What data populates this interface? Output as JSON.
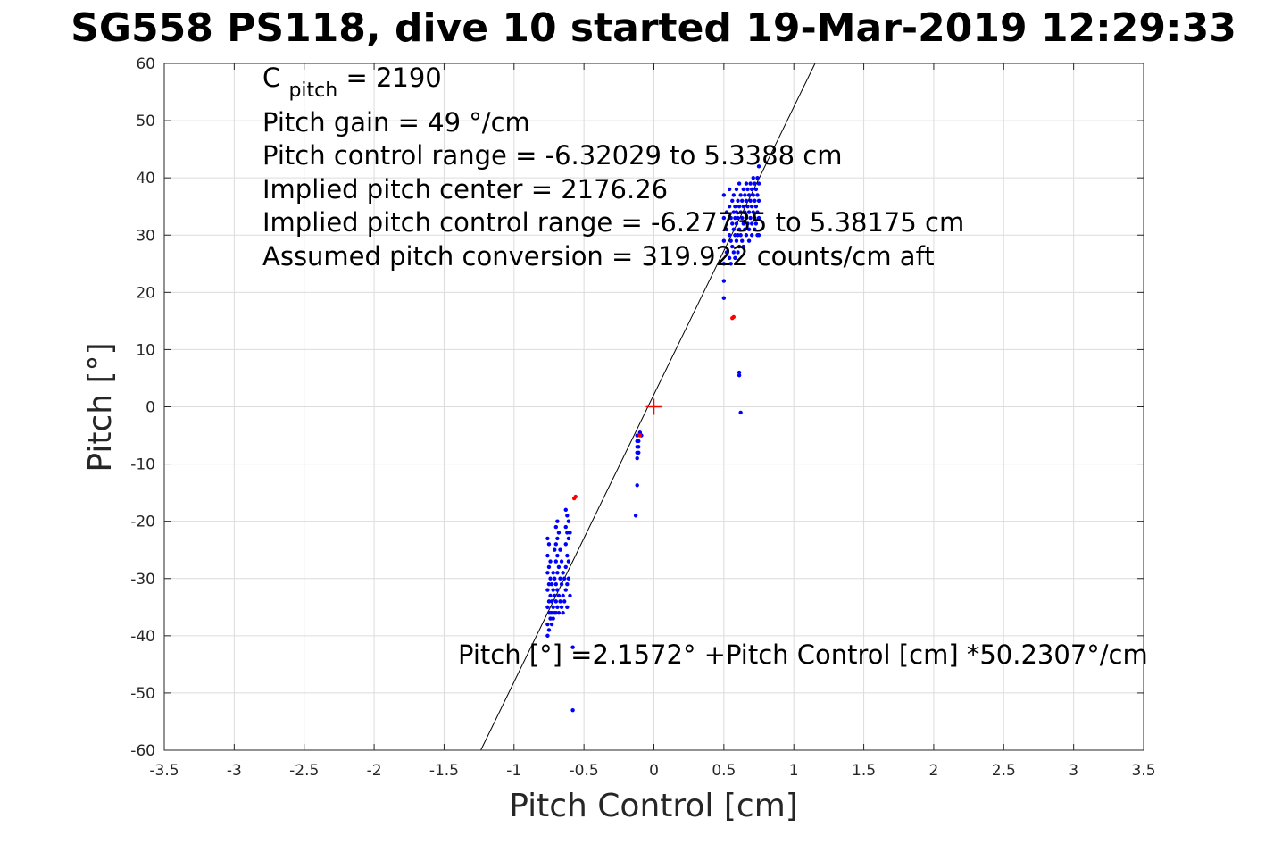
{
  "chart_data": {
    "type": "scatter",
    "title": "SG558 PS118, dive 10 started 19-Mar-2019 12:29:33",
    "xlabel": "Pitch Control [cm]",
    "ylabel": "Pitch [°]",
    "xlim": [
      -3.5,
      3.5
    ],
    "ylim": [
      -60,
      60
    ],
    "grid": true,
    "x_ticks": [
      "-3.5",
      "-3",
      "-2.5",
      "-2",
      "-1.5",
      "-1",
      "-0.5",
      "0",
      "0.5",
      "1",
      "1.5",
      "2",
      "2.5",
      "3",
      "3.5"
    ],
    "y_ticks": [
      "-60",
      "-50",
      "-40",
      "-30",
      "-20",
      "-10",
      "0",
      "10",
      "20",
      "30",
      "40",
      "50",
      "60"
    ],
    "annotations": {
      "c_pitch_main": "C",
      "c_pitch_sub": "pitch",
      "c_pitch_value": " = 2190",
      "pitch_gain": "Pitch gain = 49 °/cm",
      "control_range": "Pitch control range = -6.32029 to 5.3388 cm",
      "implied_center": "Implied pitch center = 2176.26",
      "implied_range": "Implied pitch control range = -6.27735 to 5.38175 cm",
      "conversion": "Assumed pitch conversion = 319.922 counts/cm aft",
      "fit_equation": "Pitch [°] =2.1572° +Pitch Control [cm] *50.2307°/cm"
    },
    "fit_line": {
      "intercept": 2.1572,
      "slope": 50.2307,
      "color": "#000000"
    },
    "center_marker": {
      "x": 0,
      "y": 0,
      "color": "#ff0000"
    },
    "series": [
      {
        "color": "#0000ff",
        "points": [
          [
            -0.76,
            -23
          ],
          [
            -0.76,
            -26
          ],
          [
            -0.76,
            -29
          ],
          [
            -0.76,
            -32
          ],
          [
            -0.76,
            -35
          ],
          [
            -0.76,
            -38
          ],
          [
            -0.76,
            -40
          ],
          [
            -0.75,
            -24
          ],
          [
            -0.75,
            -28
          ],
          [
            -0.75,
            -31
          ],
          [
            -0.75,
            -34
          ],
          [
            -0.75,
            -36
          ],
          [
            -0.75,
            -39
          ],
          [
            -0.74,
            -27
          ],
          [
            -0.74,
            -30
          ],
          [
            -0.74,
            -33
          ],
          [
            -0.74,
            -36
          ],
          [
            -0.74,
            -37
          ],
          [
            -0.73,
            -31
          ],
          [
            -0.73,
            -34
          ],
          [
            -0.73,
            -36
          ],
          [
            -0.73,
            -38
          ],
          [
            -0.72,
            -29
          ],
          [
            -0.72,
            -32
          ],
          [
            -0.72,
            -35
          ],
          [
            -0.72,
            -37
          ],
          [
            -0.71,
            -25
          ],
          [
            -0.71,
            -30
          ],
          [
            -0.71,
            -33
          ],
          [
            -0.71,
            -36
          ],
          [
            -0.7,
            -21
          ],
          [
            -0.7,
            -24
          ],
          [
            -0.7,
            -27
          ],
          [
            -0.7,
            -31
          ],
          [
            -0.7,
            -34
          ],
          [
            -0.7,
            -36
          ],
          [
            -0.69,
            -20
          ],
          [
            -0.69,
            -23
          ],
          [
            -0.69,
            -26
          ],
          [
            -0.69,
            -29
          ],
          [
            -0.69,
            -32
          ],
          [
            -0.69,
            -35
          ],
          [
            -0.68,
            -22
          ],
          [
            -0.68,
            -28
          ],
          [
            -0.68,
            -33
          ],
          [
            -0.68,
            -36
          ],
          [
            -0.67,
            -25
          ],
          [
            -0.67,
            -30
          ],
          [
            -0.67,
            -34
          ],
          [
            -0.66,
            -27
          ],
          [
            -0.66,
            -31
          ],
          [
            -0.66,
            -35
          ],
          [
            -0.65,
            -29
          ],
          [
            -0.65,
            -33
          ],
          [
            -0.65,
            -36
          ],
          [
            -0.64,
            -30
          ],
          [
            -0.64,
            -34
          ],
          [
            -0.63,
            -18
          ],
          [
            -0.63,
            -21
          ],
          [
            -0.63,
            -24
          ],
          [
            -0.63,
            -28
          ],
          [
            -0.63,
            -32
          ],
          [
            -0.62,
            -19
          ],
          [
            -0.62,
            -22
          ],
          [
            -0.62,
            -26
          ],
          [
            -0.62,
            -31
          ],
          [
            -0.62,
            -35
          ],
          [
            -0.61,
            -20
          ],
          [
            -0.61,
            -23
          ],
          [
            -0.61,
            -27
          ],
          [
            -0.61,
            -30
          ],
          [
            -0.6,
            -22
          ],
          [
            -0.6,
            -33
          ],
          [
            -0.58,
            -42
          ],
          [
            -0.58,
            -53
          ],
          [
            -0.12,
            -5
          ],
          [
            -0.12,
            -6
          ],
          [
            -0.12,
            -7
          ],
          [
            -0.12,
            -8
          ],
          [
            -0.12,
            -9
          ],
          [
            -0.11,
            -6
          ],
          [
            -0.11,
            -7
          ],
          [
            -0.11,
            -8
          ],
          [
            -0.12,
            -13.7
          ],
          [
            -0.13,
            -19
          ],
          [
            -0.1,
            -4.5
          ],
          [
            -0.09,
            -5
          ],
          [
            0.5,
            37
          ],
          [
            0.5,
            33
          ],
          [
            0.5,
            29
          ],
          [
            0.5,
            25
          ],
          [
            0.5,
            22
          ],
          [
            0.5,
            19
          ],
          [
            0.52,
            34
          ],
          [
            0.52,
            31
          ],
          [
            0.52,
            27
          ],
          [
            0.54,
            38
          ],
          [
            0.54,
            35
          ],
          [
            0.54,
            30
          ],
          [
            0.54,
            26
          ],
          [
            0.55,
            33
          ],
          [
            0.55,
            29
          ],
          [
            0.55,
            25
          ],
          [
            0.56,
            36
          ],
          [
            0.56,
            32
          ],
          [
            0.56,
            28
          ],
          [
            0.57,
            37
          ],
          [
            0.57,
            34
          ],
          [
            0.57,
            31
          ],
          [
            0.57,
            27
          ],
          [
            0.58,
            35
          ],
          [
            0.58,
            33
          ],
          [
            0.58,
            30
          ],
          [
            0.58,
            26
          ],
          [
            0.59,
            38
          ],
          [
            0.59,
            34
          ],
          [
            0.59,
            32
          ],
          [
            0.59,
            29
          ],
          [
            0.6,
            36
          ],
          [
            0.6,
            33
          ],
          [
            0.6,
            30
          ],
          [
            0.6,
            27
          ],
          [
            0.61,
            39
          ],
          [
            0.61,
            35
          ],
          [
            0.61,
            31
          ],
          [
            0.61,
            28
          ],
          [
            0.62,
            37
          ],
          [
            0.62,
            34
          ],
          [
            0.62,
            30
          ],
          [
            0.63,
            36
          ],
          [
            0.63,
            33
          ],
          [
            0.63,
            29
          ],
          [
            0.64,
            38
          ],
          [
            0.64,
            35
          ],
          [
            0.64,
            32
          ],
          [
            0.64,
            28
          ],
          [
            0.65,
            37
          ],
          [
            0.65,
            34
          ],
          [
            0.65,
            31
          ],
          [
            0.66,
            39
          ],
          [
            0.66,
            36
          ],
          [
            0.66,
            33
          ],
          [
            0.66,
            30
          ],
          [
            0.67,
            38
          ],
          [
            0.67,
            35
          ],
          [
            0.67,
            32
          ],
          [
            0.68,
            37
          ],
          [
            0.68,
            34
          ],
          [
            0.68,
            31
          ],
          [
            0.68,
            29
          ],
          [
            0.69,
            39
          ],
          [
            0.69,
            36
          ],
          [
            0.69,
            33
          ],
          [
            0.7,
            38
          ],
          [
            0.7,
            35
          ],
          [
            0.7,
            32
          ],
          [
            0.7,
            30
          ],
          [
            0.71,
            40
          ],
          [
            0.71,
            37
          ],
          [
            0.71,
            34
          ],
          [
            0.72,
            39
          ],
          [
            0.72,
            36
          ],
          [
            0.72,
            33
          ],
          [
            0.72,
            31
          ],
          [
            0.73,
            38
          ],
          [
            0.73,
            35
          ],
          [
            0.73,
            32
          ],
          [
            0.74,
            40
          ],
          [
            0.74,
            37
          ],
          [
            0.74,
            34
          ],
          [
            0.74,
            30
          ],
          [
            0.75,
            42
          ],
          [
            0.75,
            39
          ],
          [
            0.75,
            36
          ],
          [
            0.75,
            33
          ],
          [
            0.75,
            30
          ],
          [
            0.61,
            6
          ],
          [
            0.61,
            5.5
          ],
          [
            0.62,
            -1
          ]
        ]
      },
      {
        "color": "#ff0000",
        "points": [
          [
            -0.56,
            -15.7
          ],
          [
            -0.57,
            -16
          ],
          [
            0.56,
            15.5
          ],
          [
            0.57,
            15.7
          ],
          [
            -0.1,
            -5
          ]
        ]
      }
    ]
  }
}
